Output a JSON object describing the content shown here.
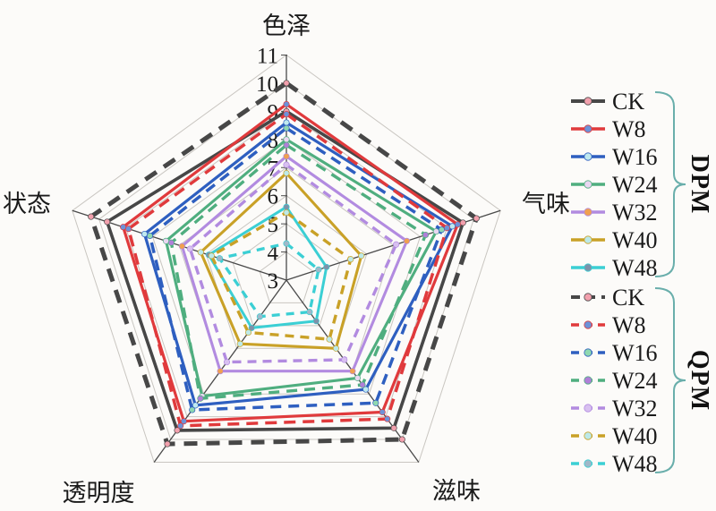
{
  "chart_data": {
    "type": "radar",
    "title": "",
    "axes": [
      {
        "key": "color",
        "label": "色泽"
      },
      {
        "key": "aroma",
        "label": "气味"
      },
      {
        "key": "taste",
        "label": "滋味"
      },
      {
        "key": "transparency",
        "label": "透明度"
      },
      {
        "key": "state",
        "label": "状态"
      }
    ],
    "radial_range": [
      3,
      11
    ],
    "radial_ticks": [
      3,
      4,
      5,
      6,
      7,
      8,
      9,
      10,
      11
    ],
    "grid": true,
    "legend_position": "right",
    "brace_color": "#69aeab",
    "axis_line_color": "#4a4a4a",
    "grid_line_color": "#c9c6c1",
    "text_color": "#1a1a1a",
    "groups": [
      {
        "name": "DPM",
        "line_style": "solid",
        "series": [
          {
            "name": "CK",
            "color": "#474747",
            "marker_color": "#f2a0ad",
            "values": [
              9.0,
              9.6,
              9.5,
              9.6,
              9.7
            ]
          },
          {
            "name": "W8",
            "color": "#e03a3c",
            "marker_color": "#6d92d8",
            "values": [
              9.25,
              9.4,
              8.8,
              9.2,
              9.1
            ]
          },
          {
            "name": "W16",
            "color": "#2e5fc0",
            "marker_color": "#bfe9ef",
            "values": [
              8.6,
              9.2,
              7.8,
              8.5,
              8.3
            ]
          },
          {
            "name": "W24",
            "color": "#4fae7f",
            "marker_color": "#e9d6f2",
            "values": [
              8.0,
              8.6,
              7.3,
              8.1,
              7.5
            ]
          },
          {
            "name": "W32",
            "color": "#b28be0",
            "marker_color": "#f0a050",
            "values": [
              7.4,
              7.5,
              7.0,
              7.0,
              6.9
            ]
          },
          {
            "name": "W40",
            "color": "#c9a127",
            "marker_color": "#bce9e9",
            "values": [
              6.8,
              5.8,
              6.0,
              5.8,
              6.2
            ]
          },
          {
            "name": "W48",
            "color": "#3bcfd4",
            "marker_color": "#7d92aa",
            "values": [
              5.6,
              4.5,
              4.8,
              5.1,
              5.9
            ]
          }
        ]
      },
      {
        "name": "QPM",
        "line_style": "dashed",
        "series": [
          {
            "name": "CK",
            "color": "#474747",
            "marker_color": "#f2a0ad",
            "values": [
              10.0,
              10.1,
              10.0,
              10.2,
              10.3
            ]
          },
          {
            "name": "W8",
            "color": "#e03a3c",
            "marker_color": "#6d92d8",
            "values": [
              8.9,
              9.0,
              9.1,
              9.4,
              8.9
            ]
          },
          {
            "name": "W16",
            "color": "#2e5fc0",
            "marker_color": "#8fd8b0",
            "values": [
              8.4,
              8.8,
              8.4,
              8.7,
              8.1
            ]
          },
          {
            "name": "W24",
            "color": "#4fae7f",
            "marker_color": "#b07fd8",
            "values": [
              7.8,
              8.2,
              7.6,
              8.2,
              7.3
            ]
          },
          {
            "name": "W32",
            "color": "#b28be0",
            "marker_color": "#d8c0f0",
            "values": [
              7.1,
              7.1,
              6.5,
              6.6,
              6.6
            ]
          },
          {
            "name": "W40",
            "color": "#c9a127",
            "marker_color": "#bce9e9",
            "values": [
              5.4,
              5.4,
              5.6,
              5.3,
              5.8
            ]
          },
          {
            "name": "W48",
            "color": "#3bcfd4",
            "marker_color": "#9fb8c8",
            "values": [
              4.3,
              4.2,
              4.4,
              4.6,
              5.5
            ]
          }
        ]
      }
    ]
  }
}
